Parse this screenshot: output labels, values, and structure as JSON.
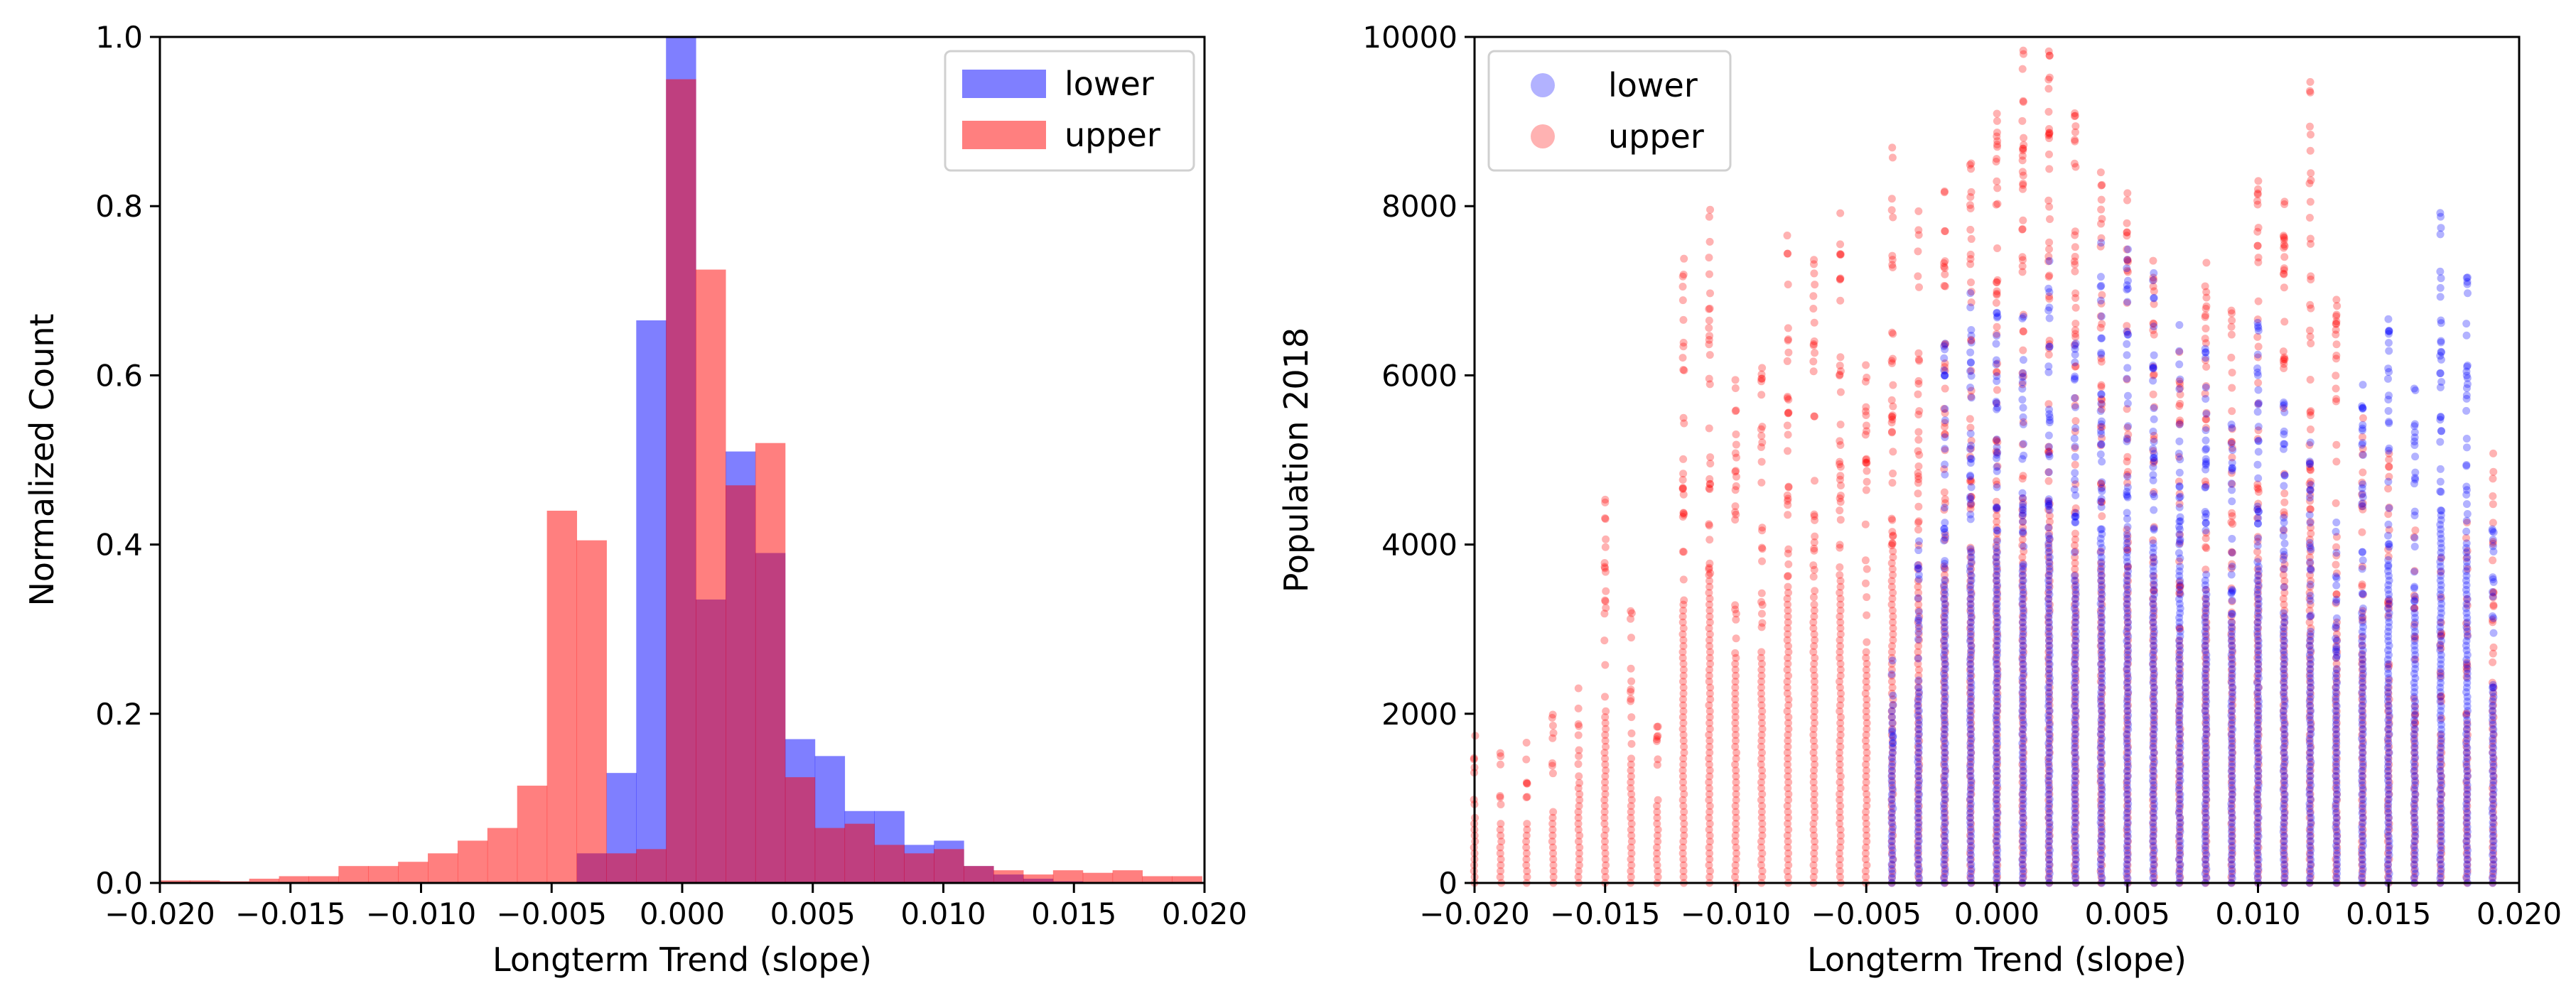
{
  "chart_data": [
    {
      "type": "histogram",
      "xlabel": "Longterm Trend (slope)",
      "ylabel": "Normalized Count",
      "xlim": [
        -0.02,
        0.02
      ],
      "ylim": [
        0,
        1.0
      ],
      "xticks": [
        "−0.020",
        "−0.015",
        "−0.010",
        "−0.005",
        "0.000",
        "0.005",
        "0.010",
        "0.015",
        "0.020"
      ],
      "xtick_values": [
        -0.02,
        -0.015,
        -0.01,
        -0.005,
        0.0,
        0.005,
        0.01,
        0.015,
        0.02
      ],
      "yticks": [
        "0.0",
        "0.2",
        "0.4",
        "0.6",
        "0.8",
        "1.0"
      ],
      "ytick_values": [
        0.0,
        0.2,
        0.4,
        0.6,
        0.8,
        1.0
      ],
      "legend": [
        "lower",
        "upper"
      ],
      "legend_position": "top-right",
      "bin_start": -0.02,
      "bin_width": 0.00114,
      "series": [
        {
          "name": "lower",
          "color": "#0000ff",
          "alpha": 0.5,
          "values": [
            0,
            0,
            0,
            0,
            0,
            0,
            0,
            0,
            0,
            0,
            0,
            0,
            0,
            0,
            0.035,
            0.13,
            0.665,
            1.0,
            0.335,
            0.51,
            0.39,
            0.17,
            0.15,
            0.085,
            0.085,
            0.045,
            0.05,
            0.02,
            0.01,
            0.005,
            0.002,
            0.0,
            0,
            0,
            0
          ]
        },
        {
          "name": "upper",
          "color": "#ff0000",
          "alpha": 0.5,
          "values": [
            0.003,
            0.003,
            0.002,
            0.005,
            0.008,
            0.008,
            0.02,
            0.02,
            0.025,
            0.035,
            0.05,
            0.065,
            0.115,
            0.44,
            0.405,
            0.035,
            0.04,
            0.95,
            0.725,
            0.47,
            0.52,
            0.125,
            0.065,
            0.07,
            0.045,
            0.035,
            0.04,
            0.02,
            0.015,
            0.01,
            0.015,
            0.012,
            0.015,
            0.008,
            0.008
          ]
        }
      ]
    },
    {
      "type": "scatter",
      "xlabel": "Longterm Trend (slope)",
      "ylabel": "Population 2018",
      "xlim": [
        -0.02,
        0.02
      ],
      "ylim": [
        0,
        10000
      ],
      "xticks": [
        "−0.020",
        "−0.015",
        "−0.010",
        "−0.005",
        "0.000",
        "0.005",
        "0.010",
        "0.015",
        "0.020"
      ],
      "xtick_values": [
        -0.02,
        -0.015,
        -0.01,
        -0.005,
        0.0,
        0.005,
        0.01,
        0.015,
        0.02
      ],
      "yticks": [
        "0",
        "2000",
        "4000",
        "6000",
        "8000",
        "10000"
      ],
      "ytick_values": [
        0,
        2000,
        4000,
        6000,
        8000,
        10000
      ],
      "legend": [
        "lower",
        "upper"
      ],
      "legend_position": "top-left",
      "column_step": 0.001,
      "series": [
        {
          "name": "lower",
          "color": "#0000ff",
          "alpha": 0.3,
          "slopes": [
            -0.004,
            -0.003,
            -0.002,
            -0.001,
            0.0,
            0.001,
            0.002,
            0.003,
            0.004,
            0.005,
            0.006,
            0.007,
            0.008,
            0.009,
            0.01,
            0.011,
            0.012,
            0.013,
            0.014,
            0.015,
            0.016,
            0.017,
            0.018,
            0.019
          ],
          "max_population": [
            3000,
            4200,
            6400,
            7100,
            7200,
            6800,
            7400,
            6600,
            7600,
            7500,
            7300,
            6800,
            6500,
            5600,
            6900,
            5800,
            5400,
            4600,
            5900,
            6800,
            5900,
            8000,
            7300,
            4200
          ]
        },
        {
          "name": "upper",
          "color": "#ff0000",
          "alpha": 0.3,
          "slopes": [
            -0.02,
            -0.019,
            -0.018,
            -0.017,
            -0.016,
            -0.015,
            -0.014,
            -0.013,
            -0.012,
            -0.011,
            -0.01,
            -0.009,
            -0.008,
            -0.007,
            -0.006,
            -0.005,
            -0.004,
            -0.003,
            -0.002,
            -0.001,
            0.0,
            0.001,
            0.002,
            0.003,
            0.004,
            0.005,
            0.006,
            0.007,
            0.008,
            0.009,
            0.01,
            0.011,
            0.012,
            0.013,
            0.014,
            0.015,
            0.016,
            0.017,
            0.018,
            0.019
          ],
          "max_population": [
            1800,
            1600,
            1700,
            2000,
            2600,
            4600,
            3400,
            2200,
            7400,
            8100,
            6000,
            6200,
            7800,
            7400,
            8200,
            6200,
            8900,
            8000,
            8300,
            8800,
            9800,
            9900,
            10000,
            9200,
            8500,
            8200,
            7600,
            6400,
            7400,
            7000,
            8300,
            8300,
            9500,
            6900,
            5800,
            5200,
            4200,
            3900,
            4300,
            5200
          ]
        }
      ]
    }
  ]
}
